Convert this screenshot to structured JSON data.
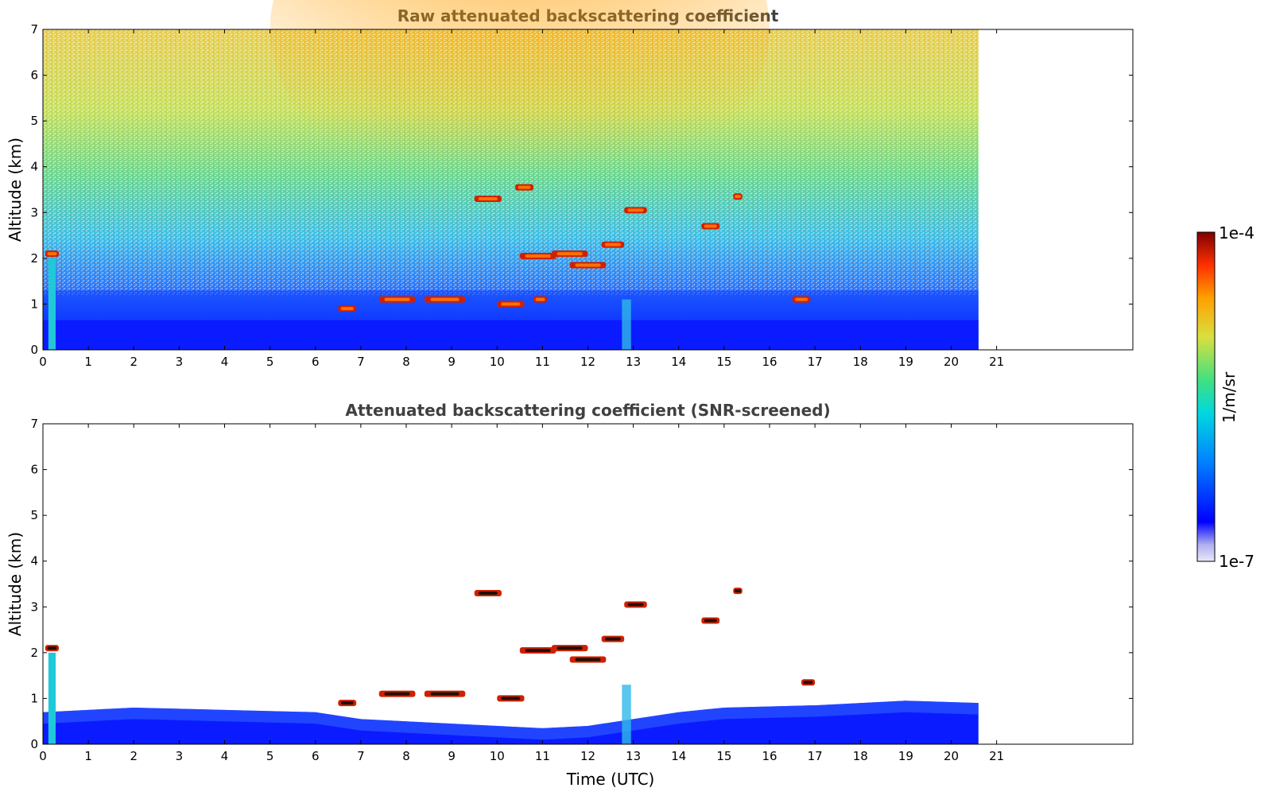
{
  "chart_data": [
    {
      "type": "heatmap",
      "title": "Raw attenuated backscattering coefficient",
      "xlabel": "",
      "ylabel": "Altitude (km)",
      "xlim": [
        0,
        24
      ],
      "ylim": [
        0,
        7
      ],
      "xticks": [
        "0",
        "1",
        "2",
        "3",
        "4",
        "5",
        "6",
        "7",
        "8",
        "9",
        "10",
        "11",
        "12",
        "13",
        "14",
        "15",
        "16",
        "17",
        "18",
        "19",
        "20",
        "21"
      ],
      "yticks": [
        "0",
        "1",
        "2",
        "3",
        "4",
        "5",
        "6",
        "7"
      ],
      "data_end_time": 20.6,
      "boundary_layer_top_km": 0.65,
      "layers": [
        {
          "t0": 0.05,
          "t1": 0.35,
          "z": 2.1,
          "desc": "red"
        },
        {
          "t0": 6.5,
          "t1": 6.9,
          "z": 0.9
        },
        {
          "t0": 7.4,
          "t1": 8.2,
          "z": 1.1
        },
        {
          "t0": 8.4,
          "t1": 9.3,
          "z": 1.1
        },
        {
          "t0": 9.5,
          "t1": 10.1,
          "z": 3.3
        },
        {
          "t0": 10.0,
          "t1": 10.6,
          "z": 1.0
        },
        {
          "t0": 10.4,
          "t1": 10.8,
          "z": 3.55
        },
        {
          "t0": 10.8,
          "t1": 11.1,
          "z": 1.1
        },
        {
          "t0": 10.5,
          "t1": 11.3,
          "z": 2.05
        },
        {
          "t0": 11.2,
          "t1": 12.0,
          "z": 2.1
        },
        {
          "t0": 11.6,
          "t1": 12.4,
          "z": 1.85
        },
        {
          "t0": 12.3,
          "t1": 12.8,
          "z": 2.3
        },
        {
          "t0": 12.8,
          "t1": 13.3,
          "z": 3.05
        },
        {
          "t0": 14.5,
          "t1": 14.9,
          "z": 2.7
        },
        {
          "t0": 15.2,
          "t1": 15.4,
          "z": 3.35
        },
        {
          "t0": 16.5,
          "t1": 16.9,
          "z": 1.1
        }
      ]
    },
    {
      "type": "heatmap",
      "title": "Attenuated backscattering coefficient (SNR-screened)",
      "xlabel": "Time (UTC)",
      "ylabel": "Altitude (km)",
      "xlim": [
        0,
        24
      ],
      "ylim": [
        0,
        7
      ],
      "xticks": [
        "0",
        "1",
        "2",
        "3",
        "4",
        "5",
        "6",
        "7",
        "8",
        "9",
        "10",
        "11",
        "12",
        "13",
        "14",
        "15",
        "16",
        "17",
        "18",
        "19",
        "20",
        "21"
      ],
      "yticks": [
        "0",
        "1",
        "2",
        "3",
        "4",
        "5",
        "6",
        "7"
      ],
      "data_end_time": 20.6,
      "boundary_layer_top_km": [
        [
          0,
          0.7
        ],
        [
          2,
          0.8
        ],
        [
          4,
          0.75
        ],
        [
          6,
          0.7
        ],
        [
          7,
          0.55
        ],
        [
          8,
          0.5
        ],
        [
          9,
          0.45
        ],
        [
          10,
          0.4
        ],
        [
          11,
          0.35
        ],
        [
          12,
          0.4
        ],
        [
          13,
          0.55
        ],
        [
          14,
          0.7
        ],
        [
          15,
          0.8
        ],
        [
          17,
          0.85
        ],
        [
          19,
          0.95
        ],
        [
          20.6,
          0.9
        ]
      ],
      "layers": [
        {
          "t0": 0.05,
          "t1": 0.35,
          "z": 2.1
        },
        {
          "t0": 6.5,
          "t1": 6.9,
          "z": 0.9
        },
        {
          "t0": 7.4,
          "t1": 8.2,
          "z": 1.1
        },
        {
          "t0": 8.4,
          "t1": 9.3,
          "z": 1.1
        },
        {
          "t0": 9.5,
          "t1": 10.1,
          "z": 3.3
        },
        {
          "t0": 10.0,
          "t1": 10.6,
          "z": 1.0
        },
        {
          "t0": 10.5,
          "t1": 11.3,
          "z": 2.05
        },
        {
          "t0": 11.2,
          "t1": 12.0,
          "z": 2.1
        },
        {
          "t0": 11.6,
          "t1": 12.4,
          "z": 1.85
        },
        {
          "t0": 12.3,
          "t1": 12.8,
          "z": 2.3
        },
        {
          "t0": 12.8,
          "t1": 13.3,
          "z": 3.05
        },
        {
          "t0": 14.5,
          "t1": 14.9,
          "z": 2.7
        },
        {
          "t0": 15.2,
          "t1": 15.4,
          "z": 3.35
        },
        {
          "t0": 16.7,
          "t1": 17.0,
          "z": 1.35
        }
      ]
    }
  ],
  "colorbar": {
    "label": "1/m/sr",
    "max_label": "1e-4",
    "min_label": "1e-7",
    "colors": [
      "#e8e8f8",
      "#b0b0f0",
      "#0000ff",
      "#0080ff",
      "#00d8e0",
      "#40e080",
      "#d8e040",
      "#ffa000",
      "#ff3000",
      "#800000"
    ]
  }
}
